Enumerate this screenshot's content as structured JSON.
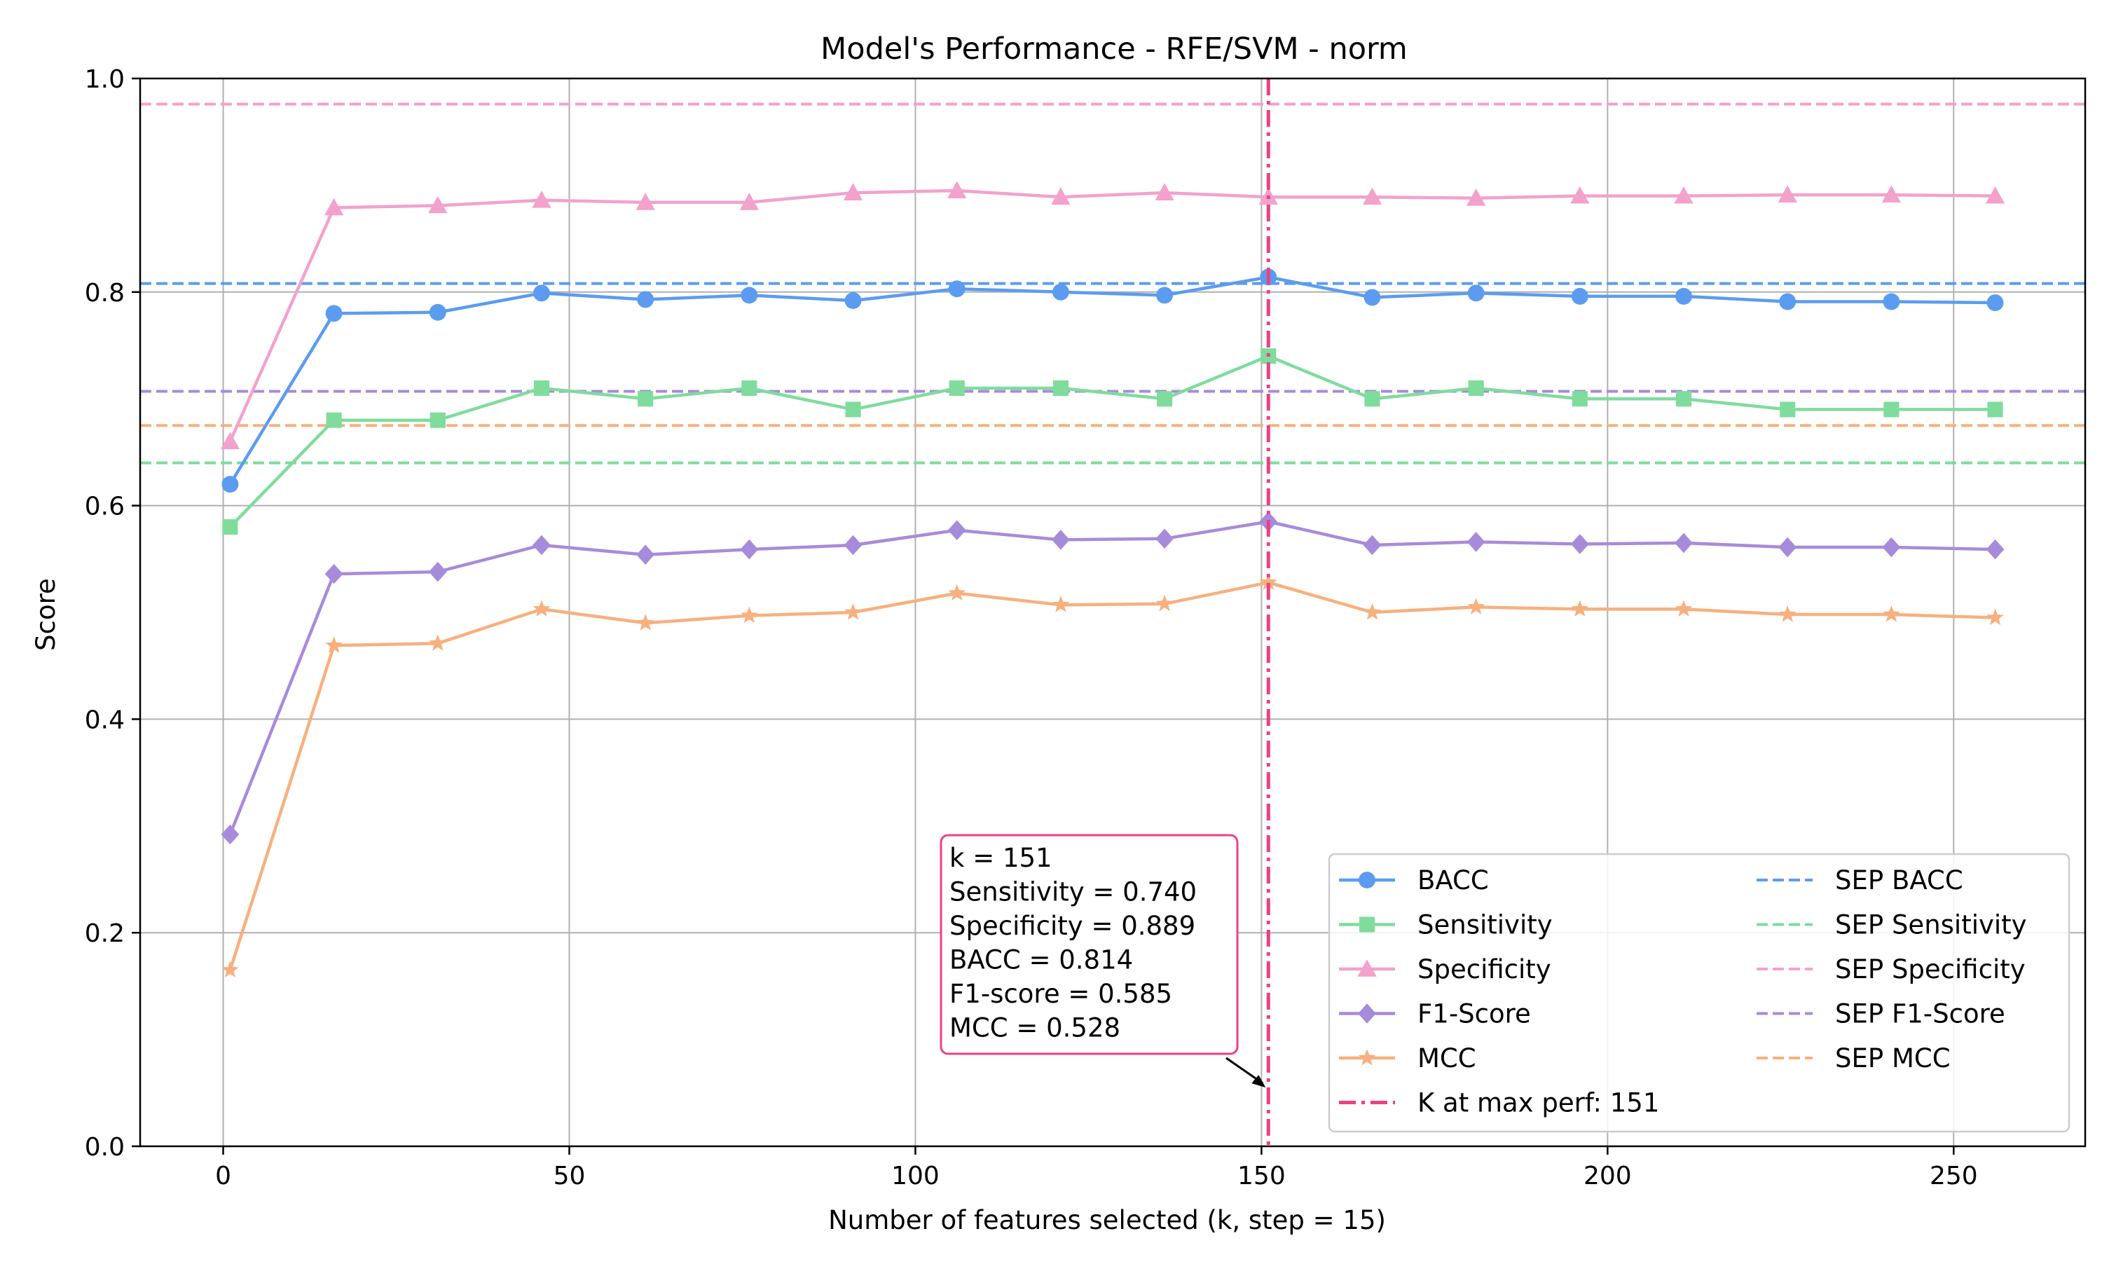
{
  "chart_data": {
    "type": "line",
    "title": "Model's Performance - RFE/SVM - norm",
    "xlabel": "Number of features selected (k, step = 15)",
    "ylabel": "Score",
    "xlim": [
      -12,
      269
    ],
    "ylim": [
      0.0,
      1.0
    ],
    "xticks": [
      0,
      50,
      100,
      150,
      200,
      250
    ],
    "xtick_labels": [
      "0",
      "50",
      "100",
      "150",
      "200",
      "250"
    ],
    "yticks": [
      0.0,
      0.2,
      0.4,
      0.6,
      0.8,
      1.0
    ],
    "ytick_labels": [
      "0.0",
      "0.2",
      "0.4",
      "0.6",
      "0.8",
      "1.0"
    ],
    "grid": true,
    "legend_position": "lower-right",
    "x": [
      1,
      16,
      31,
      46,
      61,
      76,
      91,
      106,
      121,
      136,
      151,
      166,
      181,
      196,
      211,
      226,
      241,
      256
    ],
    "series": [
      {
        "name": "BACC",
        "color": "#5b9cf0",
        "marker": "circle",
        "values": [
          0.62,
          0.78,
          0.781,
          0.799,
          0.793,
          0.797,
          0.792,
          0.803,
          0.8,
          0.797,
          0.814,
          0.795,
          0.799,
          0.796,
          0.796,
          0.791,
          0.791,
          0.79
        ]
      },
      {
        "name": "Sensitivity",
        "color": "#7fdc9c",
        "marker": "square",
        "values": [
          0.58,
          0.68,
          0.68,
          0.71,
          0.7,
          0.71,
          0.69,
          0.71,
          0.71,
          0.7,
          0.74,
          0.7,
          0.71,
          0.7,
          0.7,
          0.69,
          0.69,
          0.69
        ]
      },
      {
        "name": "Specificity",
        "color": "#f2a2cc",
        "marker": "triangle",
        "values": [
          0.66,
          0.879,
          0.881,
          0.886,
          0.884,
          0.884,
          0.893,
          0.895,
          0.889,
          0.893,
          0.889,
          0.889,
          0.888,
          0.89,
          0.89,
          0.891,
          0.891,
          0.89
        ]
      },
      {
        "name": "F1-Score",
        "color": "#a78bdb",
        "marker": "diamond",
        "values": [
          0.292,
          0.536,
          0.538,
          0.563,
          0.554,
          0.559,
          0.563,
          0.577,
          0.568,
          0.569,
          0.585,
          0.563,
          0.566,
          0.564,
          0.565,
          0.561,
          0.561,
          0.559
        ]
      },
      {
        "name": "MCC",
        "color": "#f8b07e",
        "marker": "star",
        "values": [
          0.165,
          0.469,
          0.471,
          0.503,
          0.49,
          0.497,
          0.5,
          0.518,
          0.507,
          0.508,
          0.528,
          0.5,
          0.505,
          0.503,
          0.503,
          0.498,
          0.498,
          0.495
        ]
      }
    ],
    "reference_lines": [
      {
        "name": "SEP BACC",
        "color": "#5b9cf0",
        "value": 0.808
      },
      {
        "name": "SEP Sensitivity",
        "color": "#7fdc9c",
        "value": 0.64
      },
      {
        "name": "SEP Specificity",
        "color": "#f2a2cc",
        "value": 0.976
      },
      {
        "name": "SEP F1-Score",
        "color": "#a78bdb",
        "value": 0.707
      },
      {
        "name": "SEP MCC",
        "color": "#f8b07e",
        "value": 0.675
      }
    ],
    "vertical_line": {
      "name": "K at max perf: 151",
      "color": "#ee3f86",
      "x": 151
    },
    "annotation": {
      "lines": [
        "k = 151",
        "Sensitivity = 0.740",
        "Specificity = 0.889",
        "BACC = 0.814",
        "F1-score = 0.585",
        "MCC = 0.528"
      ],
      "border_color": "#ee3f86",
      "arrow_target": [
        151,
        0.055
      ]
    }
  }
}
